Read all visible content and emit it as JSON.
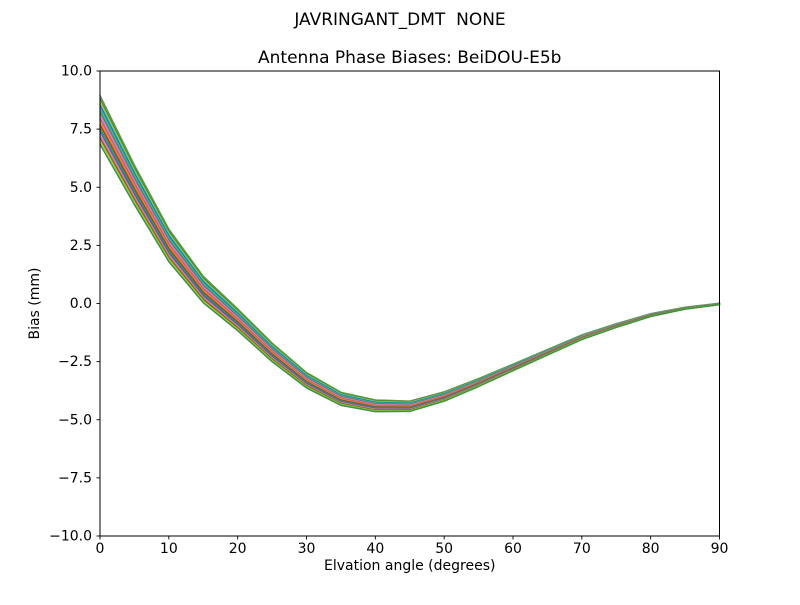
{
  "figure": {
    "suptitle": "JAVRINGANT_DMT  NONE",
    "background": "#ffffff",
    "text_color": "#000000",
    "spine_color": "#000000"
  },
  "chart_data": {
    "type": "line",
    "title": "Antenna Phase Biases: BeiDOU-E5b",
    "xlabel": "Elvation angle (degrees)",
    "ylabel": "Bias (mm)",
    "xlim": [
      0,
      90
    ],
    "ylim": [
      -10.0,
      10.0
    ],
    "xticks": [
      0,
      10,
      20,
      30,
      40,
      50,
      60,
      70,
      80,
      90
    ],
    "xtick_labels": [
      "0",
      "10",
      "20",
      "30",
      "40",
      "50",
      "60",
      "70",
      "80",
      "90"
    ],
    "yticks": [
      -10.0,
      -7.5,
      -5.0,
      -2.5,
      0.0,
      2.5,
      5.0,
      7.5,
      10.0
    ],
    "ytick_labels": [
      "−10.0",
      "−7.5",
      "−5.0",
      "−2.5",
      "0.0",
      "2.5",
      "5.0",
      "7.5",
      "10.0"
    ],
    "grid": false,
    "legend": "none",
    "x": [
      0,
      5,
      10,
      15,
      20,
      25,
      30,
      35,
      40,
      45,
      50,
      55,
      60,
      65,
      70,
      75,
      80,
      85,
      90
    ],
    "envelope_center": [
      7.9,
      5.1,
      2.5,
      0.6,
      -0.7,
      -2.1,
      -3.3,
      -4.1,
      -4.4,
      -4.42,
      -4.0,
      -3.4,
      -2.75,
      -2.1,
      -1.45,
      -0.95,
      -0.5,
      -0.2,
      -0.02
    ],
    "envelope_halfwidth": [
      1.05,
      0.85,
      0.7,
      0.57,
      0.47,
      0.4,
      0.33,
      0.28,
      0.25,
      0.22,
      0.2,
      0.17,
      0.14,
      0.12,
      0.1,
      0.08,
      0.06,
      0.04,
      0.03
    ],
    "line_width": 1.5,
    "series": [
      {
        "color": "#7f7f7f",
        "offset": 1.0
      },
      {
        "color": "#2ca02c",
        "offset": 0.867
      },
      {
        "color": "#bcbd22",
        "offset": 0.733
      },
      {
        "color": "#1f77b4",
        "offset": 0.6
      },
      {
        "color": "#17becf",
        "offset": 0.467
      },
      {
        "color": "#2ca02c",
        "offset": 0.333
      },
      {
        "color": "#e377c2",
        "offset": 0.2
      },
      {
        "color": "#9467bd",
        "offset": 0.067
      },
      {
        "color": "#ff7f0e",
        "offset": -0.067
      },
      {
        "color": "#d62728",
        "offset": -0.2
      },
      {
        "color": "#2ca02c",
        "offset": -0.333
      },
      {
        "color": "#1f77b4",
        "offset": -0.467
      },
      {
        "color": "#e377c2",
        "offset": -0.6
      },
      {
        "color": "#8c564b",
        "offset": -0.733
      },
      {
        "color": "#bcbd22",
        "offset": -0.867
      },
      {
        "color": "#2ca02c",
        "offset": -1.0
      }
    ]
  }
}
